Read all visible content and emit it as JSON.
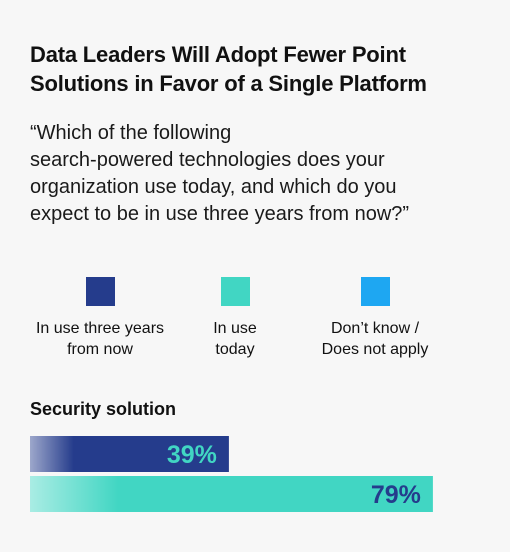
{
  "title_lines": [
    "Data Leaders Will Adopt Fewer Point",
    "Solutions in Favor of a Single Platform"
  ],
  "question_lines": [
    "“Which of the following",
    "search-powered technologies does your",
    "organization use today, and which do you",
    "expect to be in use three years from now?”"
  ],
  "legend": [
    {
      "lines": [
        "In use three years",
        "from now"
      ],
      "color": "#253c8c"
    },
    {
      "lines": [
        "In use",
        "today"
      ],
      "color": "#41d6c3"
    },
    {
      "lines": [
        "Don’t know /",
        "Does not apply"
      ],
      "color": "#1ea7f2"
    }
  ],
  "chart_data": {
    "type": "bar",
    "orientation": "horizontal",
    "categories": [
      "Security solution"
    ],
    "series": [
      {
        "name": "In use three years from now",
        "values": [
          39
        ],
        "color": "#253c8c",
        "label_color": "#41d6c3"
      },
      {
        "name": "In use today",
        "values": [
          79
        ],
        "color": "#41d6c3",
        "label_color": "#253c8c"
      },
      {
        "name": "Don’t know / Does not apply",
        "values": [
          0
        ],
        "color": "#1ea7f2",
        "label_color": "#253c8c"
      }
    ],
    "value_suffix": "%",
    "xlim": [
      0,
      100
    ],
    "grid": false,
    "legend_position": "top"
  }
}
